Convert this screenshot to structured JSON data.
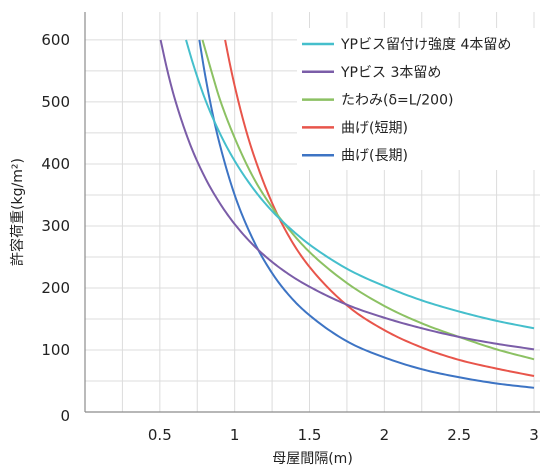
{
  "chart_data": {
    "type": "line",
    "xlabel": "母屋間隔(m)",
    "ylabel": "許容荷重(kg/m²)",
    "xlim": [
      0,
      3.04
    ],
    "ylim": [
      0,
      645
    ],
    "x_ticks": [
      0.5,
      1,
      1.5,
      2,
      2.5,
      3
    ],
    "x_tick_labels": [
      "0.5",
      "1",
      "1.5",
      "2",
      "2.5",
      "3"
    ],
    "y_ticks": [
      0,
      100,
      200,
      300,
      400,
      500,
      600
    ],
    "y_tick_labels": [
      "0",
      "100",
      "200",
      "300",
      "400",
      "500",
      "600"
    ],
    "grid": true,
    "x_grid_step": 0.25,
    "y_grid_step": 50,
    "legend_position": "top-right",
    "series": [
      {
        "name": "YPビス留付け強度 4本留め",
        "color": "#45bfcc",
        "points": [
          [
            0.675,
            600
          ],
          [
            0.72,
            563
          ],
          [
            0.8,
            506
          ],
          [
            0.9,
            450
          ],
          [
            1.0,
            405
          ],
          [
            1.125,
            360
          ],
          [
            1.25,
            324
          ],
          [
            1.375,
            295
          ],
          [
            1.5,
            270
          ],
          [
            1.75,
            231
          ],
          [
            2.0,
            203
          ],
          [
            2.25,
            180
          ],
          [
            2.5,
            162
          ],
          [
            2.75,
            147
          ],
          [
            3.0,
            135
          ]
        ]
      },
      {
        "name": "YPビス 3本留め",
        "color": "#7b5da8",
        "points": [
          [
            0.505,
            600
          ],
          [
            0.55,
            551
          ],
          [
            0.6,
            505
          ],
          [
            0.7,
            433
          ],
          [
            0.8,
            379
          ],
          [
            0.9,
            337
          ],
          [
            1.0,
            303
          ],
          [
            1.125,
            269
          ],
          [
            1.25,
            242
          ],
          [
            1.375,
            220
          ],
          [
            1.5,
            202
          ],
          [
            1.75,
            173
          ],
          [
            2.0,
            152
          ],
          [
            2.25,
            135
          ],
          [
            2.5,
            121
          ],
          [
            2.75,
            110
          ],
          [
            3.0,
            101
          ]
        ]
      },
      {
        "name": "たわみ(δ=L/200)",
        "color": "#8cc163",
        "points": [
          [
            0.785,
            600
          ],
          [
            0.85,
            545
          ],
          [
            0.9,
            505
          ],
          [
            1.0,
            442
          ],
          [
            1.125,
            378
          ],
          [
            1.25,
            330
          ],
          [
            1.375,
            291
          ],
          [
            1.5,
            258
          ],
          [
            1.75,
            208
          ],
          [
            2.0,
            171
          ],
          [
            2.25,
            143
          ],
          [
            2.5,
            121
          ],
          [
            2.75,
            101
          ],
          [
            3.0,
            85
          ]
        ]
      },
      {
        "name": "曲げ(短期)",
        "color": "#e8554b",
        "points": [
          [
            0.936,
            600
          ],
          [
            0.97,
            559
          ],
          [
            1.0,
            526
          ],
          [
            1.06,
            468
          ],
          [
            1.125,
            416
          ],
          [
            1.25,
            337
          ],
          [
            1.375,
            278
          ],
          [
            1.5,
            234
          ],
          [
            1.75,
            172
          ],
          [
            2.0,
            132
          ],
          [
            2.25,
            104
          ],
          [
            2.5,
            84
          ],
          [
            2.75,
            70
          ],
          [
            3.0,
            58
          ]
        ]
      },
      {
        "name": "曲げ(長期)",
        "color": "#3d74c4",
        "points": [
          [
            0.764,
            600
          ],
          [
            0.8,
            547
          ],
          [
            0.85,
            484
          ],
          [
            0.9,
            432
          ],
          [
            1.0,
            350
          ],
          [
            1.125,
            277
          ],
          [
            1.25,
            224
          ],
          [
            1.375,
            185
          ],
          [
            1.5,
            156
          ],
          [
            1.75,
            114
          ],
          [
            2.0,
            88
          ],
          [
            2.25,
            69
          ],
          [
            2.5,
            56
          ],
          [
            2.75,
            46
          ],
          [
            3.0,
            39
          ]
        ]
      }
    ]
  }
}
